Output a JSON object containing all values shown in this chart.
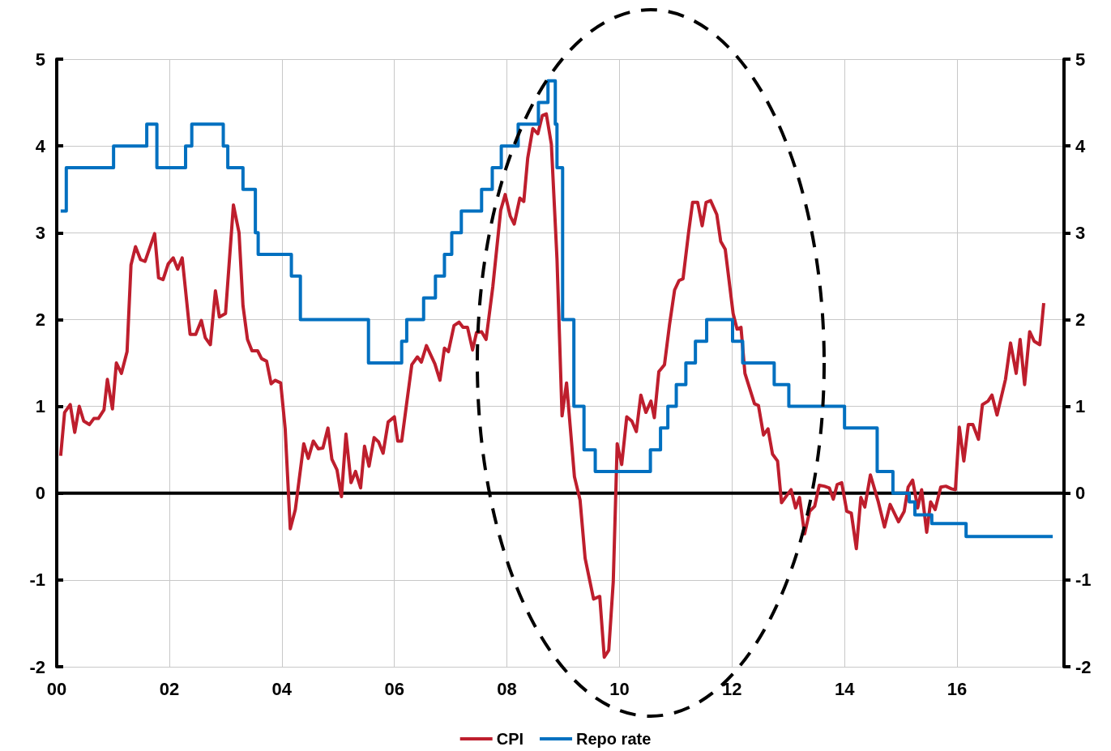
{
  "chart_data": {
    "type": "line",
    "xlim": [
      2000,
      2017.9
    ],
    "xticks": [
      {
        "value": 2000,
        "label": "00"
      },
      {
        "value": 2002,
        "label": "02"
      },
      {
        "value": 2004,
        "label": "04"
      },
      {
        "value": 2006,
        "label": "06"
      },
      {
        "value": 2008,
        "label": "08"
      },
      {
        "value": 2010,
        "label": "10"
      },
      {
        "value": 2012,
        "label": "12"
      },
      {
        "value": 2014,
        "label": "14"
      },
      {
        "value": 2016,
        "label": "16"
      }
    ],
    "ylim": [
      -2,
      5
    ],
    "yticks": [
      -2,
      -1,
      0,
      1,
      2,
      3,
      4,
      5
    ],
    "y2lim": [
      -2,
      5
    ],
    "y2ticks": [
      -2,
      -1,
      0,
      1,
      2,
      3,
      4,
      5
    ],
    "grid": true,
    "legend": "bottom",
    "marker": "none",
    "ref_lines": [
      {
        "axis": "y",
        "value": 0,
        "color": "#000000"
      }
    ],
    "series": [
      {
        "name": "CPI",
        "color": "#be1e2d",
        "x": [
          2000.07,
          2000.14,
          2000.24,
          2000.32,
          2000.4,
          2000.48,
          2000.58,
          2000.66,
          2000.74,
          2000.84,
          2000.9,
          2000.99,
          2001.06,
          2001.15,
          2001.25,
          2001.32,
          2001.4,
          2001.49,
          2001.57,
          2001.74,
          2001.81,
          2001.89,
          2001.98,
          2002.07,
          2002.15,
          2002.23,
          2002.37,
          2002.47,
          2002.57,
          2002.64,
          2002.73,
          2002.82,
          2002.89,
          2003.0,
          2003.14,
          2003.24,
          2003.31,
          2003.39,
          2003.47,
          2003.57,
          2003.64,
          2003.73,
          2003.81,
          2003.88,
          2003.98,
          2004.06,
          2004.15,
          2004.24,
          2004.39,
          2004.47,
          2004.56,
          2004.65,
          2004.73,
          2004.82,
          2004.89,
          2004.98,
          2005.06,
          2005.14,
          2005.23,
          2005.31,
          2005.4,
          2005.47,
          2005.55,
          2005.64,
          2005.72,
          2005.8,
          2005.89,
          2006.0,
          2006.06,
          2006.13,
          2006.31,
          2006.41,
          2006.48,
          2006.57,
          2006.72,
          2006.81,
          2006.89,
          2006.96,
          2007.06,
          2007.15,
          2007.22,
          2007.3,
          2007.39,
          2007.46,
          2007.55,
          2007.63,
          2007.75,
          2007.89,
          2007.97,
          2008.06,
          2008.13,
          2008.23,
          2008.3,
          2008.37,
          2008.46,
          2008.55,
          2008.63,
          2008.7,
          2008.79,
          2008.89,
          2008.98,
          2009.06,
          2009.2,
          2009.3,
          2009.39,
          2009.54,
          2009.65,
          2009.73,
          2009.81,
          2009.89,
          2009.96,
          2010.04,
          2010.13,
          2010.22,
          2010.3,
          2010.38,
          2010.47,
          2010.56,
          2010.62,
          2010.7,
          2010.8,
          2010.89,
          2010.98,
          2011.06,
          2011.13,
          2011.23,
          2011.3,
          2011.39,
          2011.47,
          2011.54,
          2011.62,
          2011.73,
          2011.8,
          2011.88,
          2012.02,
          2012.09,
          2012.16,
          2012.23,
          2012.4,
          2012.47,
          2012.56,
          2012.64,
          2012.72,
          2012.81,
          2012.88,
          2012.97,
          2013.05,
          2013.13,
          2013.2,
          2013.29,
          2013.38,
          2013.47,
          2013.55,
          2013.64,
          2013.73,
          2013.8,
          2013.87,
          2013.95,
          2014.04,
          2014.12,
          2014.21,
          2014.29,
          2014.36,
          2014.46,
          2014.6,
          2014.71,
          2014.81,
          2014.96,
          2015.06,
          2015.13,
          2015.21,
          2015.3,
          2015.37,
          2015.46,
          2015.53,
          2015.61,
          2015.71,
          2015.8,
          2015.9,
          2015.97,
          2016.04,
          2016.12,
          2016.2,
          2016.28,
          2016.38,
          2016.45,
          2016.55,
          2016.62,
          2016.71,
          2016.86,
          2016.95,
          2017.05,
          2017.12,
          2017.2,
          2017.29,
          2017.37,
          2017.47,
          2017.54
        ],
        "values": [
          0.43,
          0.93,
          1.02,
          0.7,
          1.0,
          0.83,
          0.79,
          0.86,
          0.86,
          0.96,
          1.31,
          0.97,
          1.5,
          1.38,
          1.63,
          2.63,
          2.84,
          2.69,
          2.67,
          2.99,
          2.48,
          2.46,
          2.64,
          2.71,
          2.58,
          2.71,
          1.83,
          1.83,
          1.99,
          1.79,
          1.71,
          2.33,
          2.03,
          2.07,
          3.32,
          3.0,
          2.16,
          1.77,
          1.64,
          1.64,
          1.55,
          1.52,
          1.26,
          1.3,
          1.27,
          0.74,
          -0.41,
          -0.19,
          0.57,
          0.4,
          0.6,
          0.51,
          0.52,
          0.75,
          0.39,
          0.27,
          -0.04,
          0.68,
          0.12,
          0.25,
          0.06,
          0.54,
          0.31,
          0.64,
          0.59,
          0.46,
          0.82,
          0.88,
          0.6,
          0.6,
          1.48,
          1.57,
          1.51,
          1.7,
          1.49,
          1.3,
          1.67,
          1.63,
          1.93,
          1.97,
          1.91,
          1.91,
          1.65,
          1.85,
          1.86,
          1.77,
          2.38,
          3.26,
          3.44,
          3.19,
          3.1,
          3.4,
          3.36,
          3.86,
          4.2,
          4.14,
          4.35,
          4.37,
          4.02,
          2.7,
          0.89,
          1.27,
          0.19,
          -0.08,
          -0.75,
          -1.22,
          -1.19,
          -1.89,
          -1.81,
          -1.02,
          0.57,
          0.33,
          0.88,
          0.83,
          0.71,
          1.13,
          0.93,
          1.06,
          0.87,
          1.4,
          1.48,
          1.94,
          2.34,
          2.45,
          2.47,
          3.01,
          3.35,
          3.35,
          3.08,
          3.35,
          3.37,
          3.21,
          2.9,
          2.81,
          2.07,
          1.89,
          1.91,
          1.38,
          1.03,
          1.01,
          0.67,
          0.74,
          0.45,
          0.37,
          -0.11,
          -0.03,
          0.04,
          -0.17,
          -0.05,
          -0.47,
          -0.21,
          -0.15,
          0.09,
          0.08,
          0.06,
          -0.07,
          0.1,
          0.12,
          -0.21,
          -0.23,
          -0.64,
          -0.05,
          -0.16,
          0.21,
          -0.1,
          -0.39,
          -0.13,
          -0.33,
          -0.21,
          0.07,
          0.15,
          -0.17,
          0.04,
          -0.45,
          -0.1,
          -0.19,
          0.07,
          0.08,
          0.05,
          0.04,
          0.76,
          0.37,
          0.79,
          0.79,
          0.62,
          1.02,
          1.06,
          1.13,
          0.9,
          1.31,
          1.73,
          1.38,
          1.77,
          1.25,
          1.86,
          1.75,
          1.71,
          2.19
        ]
      },
      {
        "name": "Repo rate",
        "type": "step",
        "color": "#0070c0",
        "x": [
          2000.07,
          2000.17,
          2001.01,
          2001.6,
          2001.78,
          2002.29,
          2002.4,
          2002.96,
          2003.04,
          2003.31,
          2003.53,
          2003.58,
          2004.17,
          2004.33,
          2005.54,
          2006.13,
          2006.22,
          2006.52,
          2006.73,
          2006.89,
          2007.02,
          2007.19,
          2007.55,
          2007.74,
          2007.9,
          2008.2,
          2008.56,
          2008.73,
          2008.86,
          2008.89,
          2008.99,
          2009.19,
          2009.37,
          2009.57,
          2010.55,
          2010.73,
          2010.86,
          2011.01,
          2011.18,
          2011.35,
          2011.55,
          2012.01,
          2012.19,
          2012.75,
          2013.01,
          2014.0,
          2014.58,
          2014.86,
          2015.15,
          2015.25,
          2015.55,
          2016.16,
          2017.7
        ],
        "values": [
          3.25,
          3.75,
          4.0,
          4.25,
          3.75,
          4.0,
          4.25,
          4.0,
          3.75,
          3.5,
          3.0,
          2.75,
          2.5,
          2.0,
          1.5,
          1.75,
          2.0,
          2.25,
          2.5,
          2.75,
          3.0,
          3.25,
          3.5,
          3.75,
          4.0,
          4.25,
          4.5,
          4.75,
          4.25,
          3.75,
          2.0,
          1.0,
          0.5,
          0.25,
          0.5,
          0.75,
          1.0,
          1.25,
          1.5,
          1.75,
          2.0,
          1.75,
          1.5,
          1.25,
          1.0,
          0.75,
          0.25,
          0.0,
          -0.1,
          -0.25,
          -0.35,
          -0.5,
          -0.5
        ]
      }
    ]
  }
}
